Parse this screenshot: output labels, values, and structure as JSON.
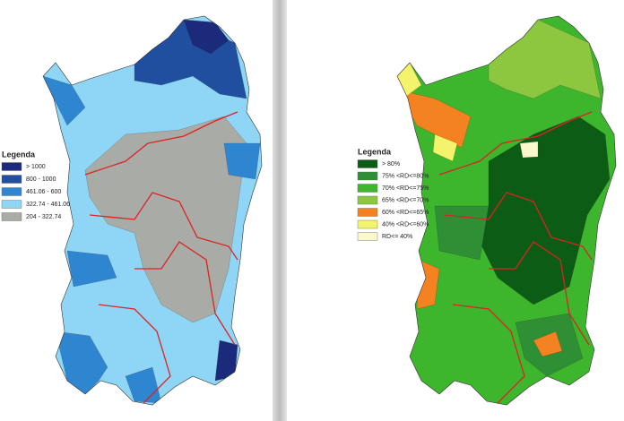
{
  "maps": [
    {
      "legend": {
        "title": "Legenda",
        "items": [
          {
            "label": "> 1000",
            "color": "#1b2a7a"
          },
          {
            "label": "800 - 1000",
            "color": "#1f4f9e"
          },
          {
            "label": "461.06 - 600",
            "color": "#2e86d1"
          },
          {
            "label": "322.74 - 461.06",
            "color": "#8fd6f6"
          },
          {
            "label": "204 - 322.74",
            "color": "#a9aba7"
          }
        ]
      }
    },
    {
      "legend": {
        "title": "Legenda",
        "items": [
          {
            "label": "> 80%",
            "color": "#0c5c16"
          },
          {
            "label": "75% <RD<=80%",
            "color": "#2f8f35"
          },
          {
            "label": "70% <RD<=75%",
            "color": "#3db52d"
          },
          {
            "label": "65% <RD<=70%",
            "color": "#8dc73f"
          },
          {
            "label": "60% <RD<=65%",
            "color": "#f58220"
          },
          {
            "label": "40% <RD<=60%",
            "color": "#f4f36c"
          },
          {
            "label": "RD<= 40%",
            "color": "#fbf8cc"
          }
        ]
      }
    }
  ]
}
